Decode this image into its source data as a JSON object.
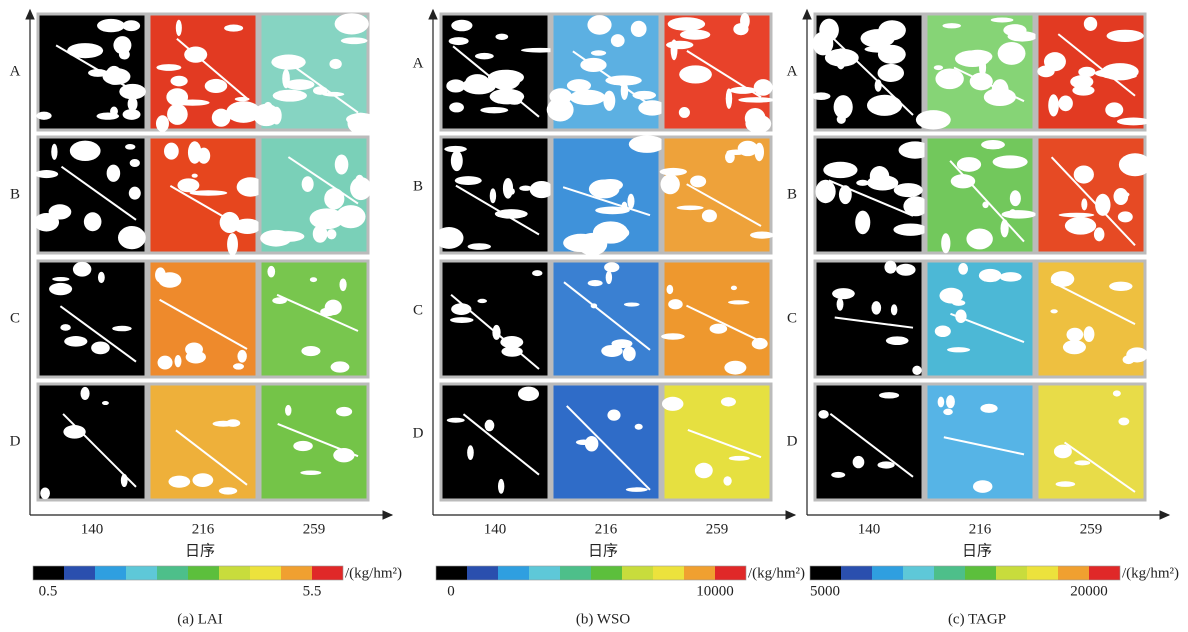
{
  "panels": [
    {
      "rows": [
        "A",
        "B",
        "C",
        "D"
      ],
      "columns": [
        "140",
        "216",
        "259"
      ],
      "xlabel": "日序",
      "colorbar": {
        "ticks": [
          "0.5",
          "5.5"
        ],
        "unit": "/(kg/hm²)"
      },
      "caption": "(a) LAI"
    },
    {
      "rows": [
        "A",
        "B",
        "C",
        "D"
      ],
      "columns": [
        "140",
        "216",
        "259"
      ],
      "xlabel": "日序",
      "colorbar": {
        "ticks": [
          "0",
          "10000"
        ],
        "unit": "/(kg/hm²)"
      },
      "caption": "(b) WSO"
    },
    {
      "rows": [
        "A",
        "B",
        "C",
        "D"
      ],
      "columns": [
        "140",
        "216",
        "259"
      ],
      "xlabel": "日序",
      "colorbar": {
        "ticks": [
          "5000",
          "20000"
        ],
        "unit": "/(kg/hm²)"
      },
      "caption": "(c) TAGP"
    }
  ]
}
